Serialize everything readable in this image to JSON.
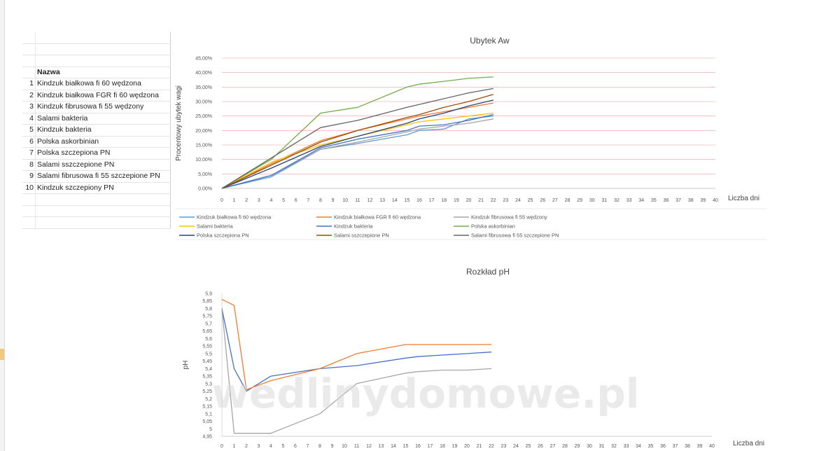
{
  "table": {
    "header": "Nazwa",
    "rows": [
      {
        "no": "1",
        "name": "Kindzuk białkowa fi 60 wędzona"
      },
      {
        "no": "2",
        "name": "Kindzuk białkowa FGR fi 60 wędzona"
      },
      {
        "no": "3",
        "name": "Kindzuk  fibrusowa fi 55 wędzony"
      },
      {
        "no": "4",
        "name": "Salami bakteria"
      },
      {
        "no": "5",
        "name": "Kindzuk bakteria"
      },
      {
        "no": "6",
        "name": "Polska askorbinian"
      },
      {
        "no": "7",
        "name": "Polska szczepiona PN"
      },
      {
        "no": "8",
        "name": "Salami sszczepione PN"
      },
      {
        "no": "9",
        "name": "Salami fibrusowa fi 55 szczepione PN"
      },
      {
        "no": "10",
        "name": "Kindzuk szczepiony PN"
      }
    ]
  },
  "watermark": "wedlinydomowe.pl",
  "chart_data": [
    {
      "type": "line",
      "title": "Ubytek Aw",
      "xlabel": "Liczba dni",
      "ylabel": "Procentowy ubytek wagi",
      "x_ticks": [
        "0",
        "1",
        "2",
        "3",
        "4",
        "5",
        "6",
        "7",
        "8",
        "9",
        "10",
        "11",
        "12",
        "13",
        "14",
        "15",
        "16",
        "17",
        "18",
        "19",
        "20",
        "21",
        "22",
        "23",
        "24",
        "25",
        "26",
        "27",
        "28",
        "29",
        "30",
        "31",
        "32",
        "33",
        "34",
        "35",
        "36",
        "37",
        "38",
        "39",
        "40"
      ],
      "y_ticks": [
        "0,00%",
        "5,00%",
        "10,00%",
        "15,00%",
        "20,00%",
        "25,00%",
        "30,00%",
        "35,00%",
        "40,00%",
        "45,00%"
      ],
      "ylim": [
        0,
        45
      ],
      "grid": true,
      "legend_position": "bottom",
      "x_categories": [
        0,
        4,
        8,
        11,
        15,
        16,
        18,
        20,
        22
      ],
      "series": [
        {
          "name": "Kindzuk białkowa fi 60 wędzona",
          "color": "#5b9bd5",
          "values": [
            0,
            4.0,
            13.5,
            15.5,
            18.5,
            20.0,
            20.5,
            24.0,
            25.0
          ]
        },
        {
          "name": "Kindzuk białkowa FGR fi 60 wędzona",
          "color": "#ed7d31",
          "values": [
            0,
            8.5,
            16.5,
            20.0,
            24.0,
            25.0,
            26.5,
            28.0,
            29.5
          ]
        },
        {
          "name": "Kindzuk  fibrusowa fi 55 wędzony",
          "color": "#a5a5a5",
          "values": [
            0,
            4.5,
            13.5,
            16.0,
            19.5,
            20.5,
            21.5,
            22.5,
            24.0
          ]
        },
        {
          "name": "Salami bakteria",
          "color": "#ffc000",
          "values": [
            0,
            9.0,
            15.0,
            18.0,
            22.0,
            23.0,
            24.0,
            25.0,
            26.0
          ]
        },
        {
          "name": "Kindzuk bakteria",
          "color": "#4472c4",
          "values": [
            0,
            4.5,
            14.0,
            17.0,
            20.0,
            21.5,
            22.0,
            23.5,
            25.5
          ]
        },
        {
          "name": "Polska askorbinian",
          "color": "#70ad47",
          "values": [
            0,
            10.0,
            26.0,
            28.0,
            35.0,
            36.0,
            37.0,
            38.0,
            38.5
          ]
        },
        {
          "name": "Polska szczepiona PN",
          "color": "#264478",
          "values": [
            0,
            7.0,
            14.5,
            18.0,
            22.5,
            24.0,
            26.0,
            28.5,
            30.5
          ]
        },
        {
          "name": "Salami sszczepione PN",
          "color": "#9e480e",
          "values": [
            0,
            8.0,
            16.0,
            20.0,
            24.5,
            25.5,
            28.0,
            30.0,
            32.5
          ]
        },
        {
          "name": "Salami fibrusowa fi 55 szczepione PN",
          "color": "#636363",
          "values": [
            0,
            10.5,
            21.0,
            23.5,
            28.0,
            29.0,
            31.0,
            33.0,
            34.5
          ]
        }
      ]
    },
    {
      "type": "line",
      "title": "Rozkład pH",
      "xlabel": "Liczba dni",
      "ylabel": "pH",
      "x_ticks": [
        "0",
        "1",
        "2",
        "3",
        "4",
        "5",
        "6",
        "7",
        "8",
        "9",
        "10",
        "11",
        "12",
        "13",
        "14",
        "15",
        "16",
        "17",
        "18",
        "19",
        "20",
        "21",
        "22",
        "23",
        "24",
        "25",
        "26",
        "27",
        "28",
        "29",
        "30",
        "31",
        "32",
        "33",
        "34",
        "35",
        "36",
        "37",
        "38",
        "39",
        "40"
      ],
      "y_ticks": [
        "4,95",
        "5",
        "5,05",
        "5,1",
        "5,15",
        "5,2",
        "5,25",
        "5,3",
        "5,35",
        "5,4",
        "5,45",
        "5,5",
        "5,55",
        "5,6",
        "5,65",
        "5,7",
        "5,75",
        "5,8",
        "5,85",
        "5,9"
      ],
      "ylim": [
        4.95,
        5.9
      ],
      "grid": false,
      "series": [
        {
          "color": "#4472c4",
          "x": [
            0,
            1,
            2,
            4,
            8,
            11,
            15,
            16,
            18,
            20,
            22
          ],
          "values": [
            5.8,
            5.4,
            5.25,
            5.35,
            5.4,
            5.42,
            5.47,
            5.48,
            5.49,
            5.5,
            5.51
          ]
        },
        {
          "color": "#ed7d31",
          "x": [
            0,
            1,
            2,
            4,
            8,
            11,
            15,
            16,
            18,
            20,
            22
          ],
          "values": [
            5.86,
            5.82,
            5.26,
            5.32,
            5.4,
            5.5,
            5.56,
            5.56,
            5.56,
            5.56,
            5.56
          ]
        },
        {
          "color": "#a5a5a5",
          "x": [
            0,
            1,
            2,
            4,
            8,
            11,
            15,
            16,
            18,
            20,
            22
          ],
          "values": [
            5.8,
            4.97,
            4.97,
            4.97,
            5.1,
            5.3,
            5.37,
            5.38,
            5.39,
            5.39,
            5.4
          ]
        }
      ]
    }
  ]
}
